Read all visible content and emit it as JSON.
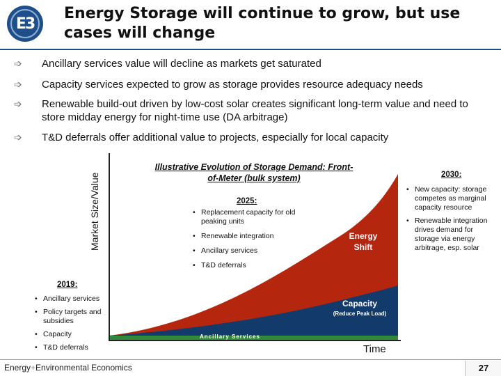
{
  "header": {
    "logo_text": "E3",
    "title": "Energy Storage will continue to grow, but use cases will change"
  },
  "bullets": [
    "Ancillary services value will decline as markets get saturated",
    "Capacity services expected to grow as storage provides resource adequacy needs",
    "Renewable build-out driven by low-cost solar creates significant long-term value and need to store midday energy for night-time use (DA arbitrage)",
    "T&D deferrals offer additional value to projects, especially for local capacity"
  ],
  "chart": {
    "title": "Illustrative Evolution of Storage Demand: Front-of-Meter (bulk system)",
    "ylabel": "Market Size/Value",
    "xlabel": "Time",
    "area_labels": {
      "energy_line1": "Energy",
      "energy_line2": "Shift",
      "capacity": "Capacity",
      "capacity_sub": "(Reduce Peak Load)",
      "ancillary": "Ancillary Services"
    },
    "colors": {
      "energy": "#b5260f",
      "capacity": "#123a6b",
      "ancillary": "#2f8a3c"
    },
    "y2019": {
      "heading": "2019:",
      "items": [
        "Ancillary services",
        "Policy targets and subsidies",
        "Capacity",
        "T&D deferrals"
      ]
    },
    "y2025": {
      "heading": "2025:",
      "items": [
        "Replacement capacity for old peaking units",
        "Renewable integration",
        "Ancillary services",
        "T&D deferrals"
      ]
    },
    "y2030": {
      "heading": "2030:",
      "items": [
        "New capacity: storage competes as marginal capacity resource",
        "Renewable integration drives demand for storage via energy arbitrage, esp. solar"
      ]
    }
  },
  "footer": {
    "brand_a": "Energy",
    "brand_sep": "+",
    "brand_b": "Environmental Economics",
    "page": "27"
  }
}
